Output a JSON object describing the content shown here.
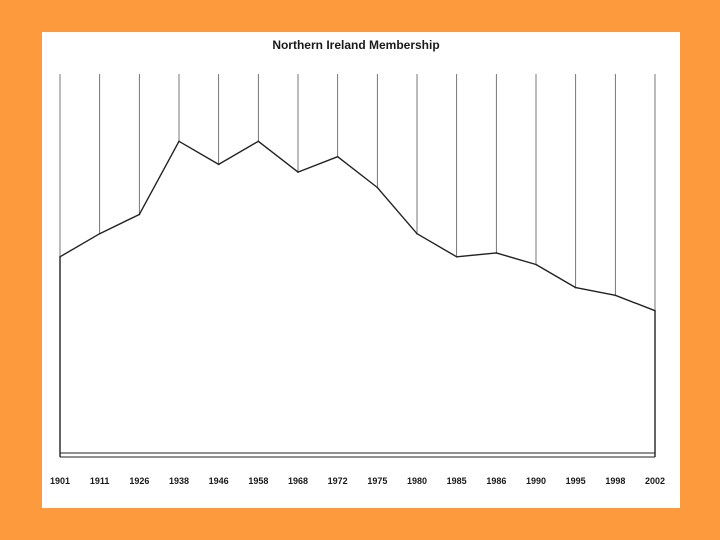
{
  "colors": {
    "background": "#fd9a3d",
    "panel": "#ffffff",
    "line": "#222222",
    "grid": "#555555"
  },
  "chart_data": {
    "type": "area",
    "title": "Northern Ireland Membership",
    "xlabel": "",
    "ylabel": "",
    "categories": [
      "1901",
      "1911",
      "1926",
      "1938",
      "1946",
      "1958",
      "1968",
      "1972",
      "1975",
      "1980",
      "1985",
      "1986",
      "1990",
      "1995",
      "1998",
      "2002"
    ],
    "series": [
      {
        "name": "Membership",
        "values": [
          52,
          58,
          63,
          82,
          76,
          82,
          74,
          78,
          70,
          58,
          52,
          53,
          50,
          44,
          42,
          38
        ]
      }
    ],
    "ylim": [
      0,
      100
    ],
    "grid": true,
    "legend": "none"
  }
}
